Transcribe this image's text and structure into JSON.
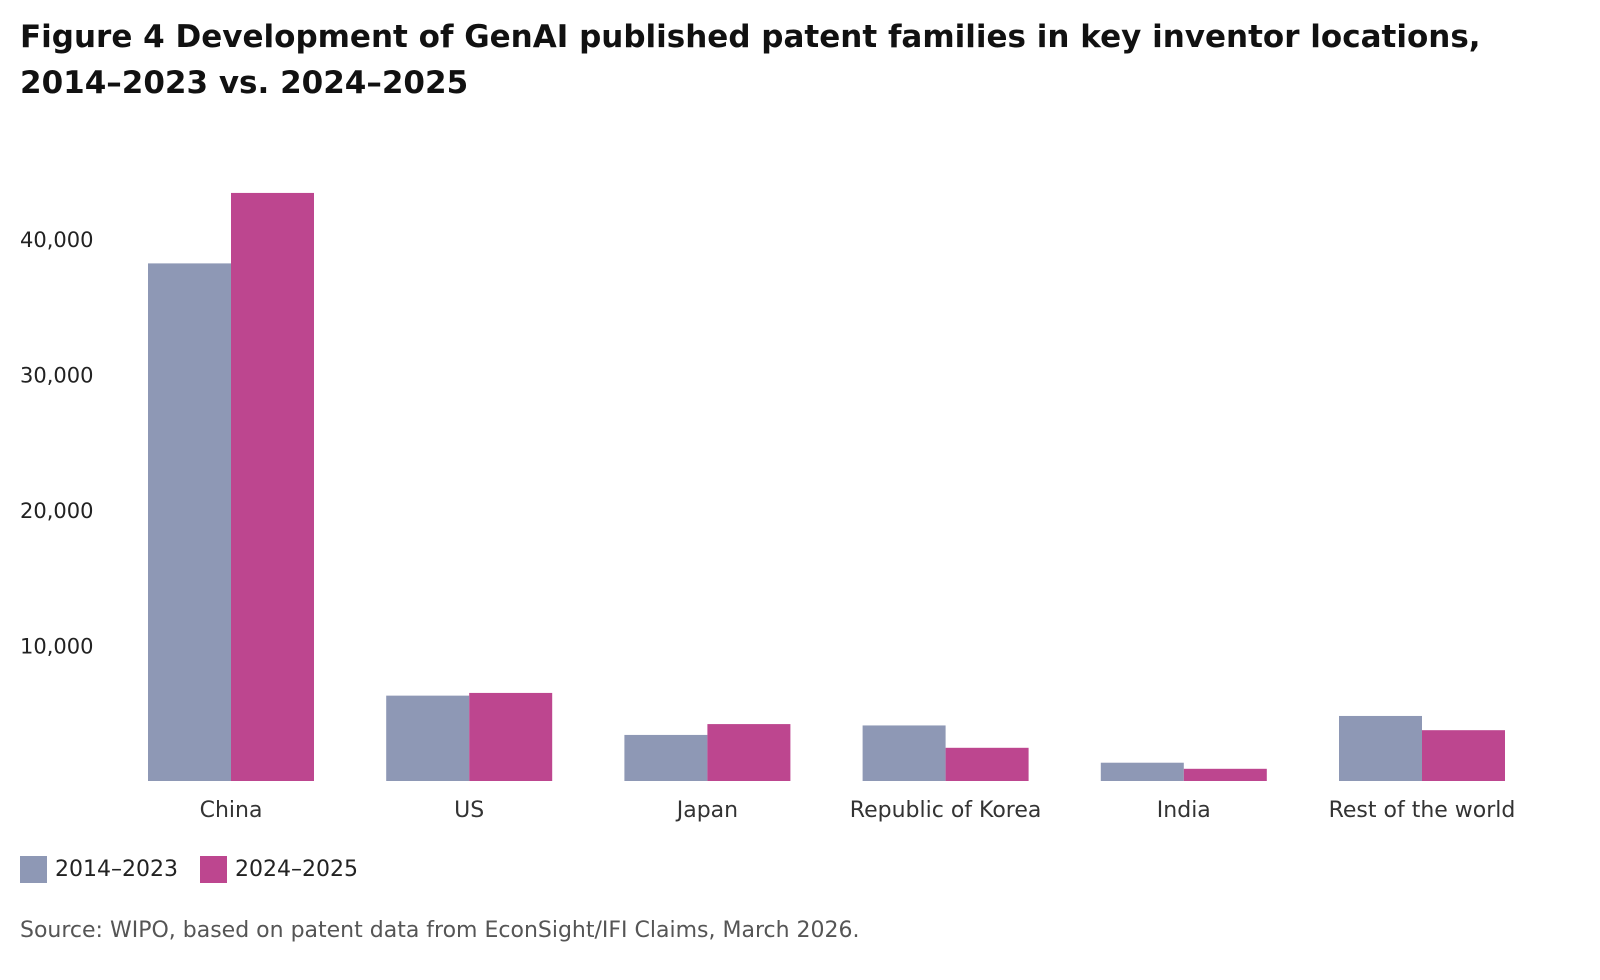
{
  "figure": {
    "title_line1": "Figure 4 Development of GenAI published patent families in key inventor locations,",
    "title_line2": "2014–2023 vs. 2024–2025",
    "source": "Source: WIPO, based on patent data from EconSight/IFI Claims, March 2026."
  },
  "chart_data": {
    "type": "bar",
    "title": "Figure 4 Development of GenAI published patent families in key inventor locations, 2014–2023 vs. 2024–2025",
    "categories": [
      "China",
      "US",
      "Japan",
      "Republic of Korea",
      "India",
      "Rest of the world"
    ],
    "series": [
      {
        "name": "2014–2023",
        "color": "#8e98b5",
        "values": [
          38200,
          6300,
          3400,
          4100,
          1350,
          4800
        ]
      },
      {
        "name": "2024–2025",
        "color": "#bd468f",
        "values": [
          43400,
          6500,
          4200,
          2450,
          900,
          3750
        ]
      }
    ],
    "yticks": [
      10000,
      20000,
      30000,
      40000
    ],
    "ytick_labels": [
      "10,000",
      "20,000",
      "30,000",
      "40,000"
    ],
    "ylim": [
      0,
      45000
    ],
    "xlabel": "",
    "ylabel": "",
    "grid": false,
    "legend_position": "bottom-left"
  }
}
